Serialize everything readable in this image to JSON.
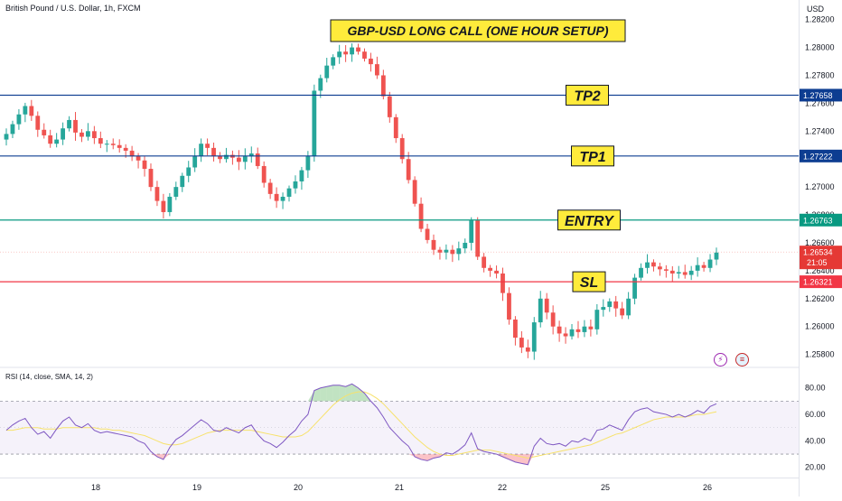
{
  "header": {
    "symbol_title": "British Pound / U.S. Dollar, 1h, FXCM",
    "currency": "USD",
    "setup_title": "GBP-USD LONG CALL (ONE HOUR SETUP)"
  },
  "indicator": {
    "title": "RSI (14, close, SMA, 14, 2)"
  },
  "countdown": "21:05",
  "icons": [
    "flash-icon",
    "us-flag-icon"
  ],
  "colors": {
    "up": "#26a69a",
    "down": "#ef5350",
    "level_blue": "#0d3d91",
    "level_green": "#089981",
    "level_red": "#f23645",
    "label_yellow": "#ffeb3b",
    "rsi_line": "#7e57c2",
    "rsi_sma": "#f7e26b"
  },
  "chart_data": [
    {
      "type": "candlestick",
      "ylim": [
        1.2572,
        1.2834
      ],
      "y_ticks": [
        "1.25800",
        "1.26000",
        "1.26200",
        "1.26400",
        "1.26600",
        "1.26800",
        "1.27000",
        "1.27200",
        "1.27400",
        "1.27600",
        "1.27800",
        "1.28000",
        "1.28200"
      ],
      "x_ticks": [
        "18",
        "19",
        "20",
        "21",
        "22",
        "25",
        "26"
      ],
      "levels": [
        {
          "name": "TP2",
          "value": 1.27658,
          "label": "1.27658",
          "color": "#0d3d91"
        },
        {
          "name": "TP1",
          "value": 1.27222,
          "label": "1.27222",
          "color": "#0d3d91"
        },
        {
          "name": "ENTRY",
          "value": 1.26763,
          "label": "1.26763",
          "color": "#089981"
        },
        {
          "name": "SL",
          "value": 1.26321,
          "label": "1.26321",
          "color": "#f23645"
        }
      ],
      "last_price": {
        "value": 1.26534,
        "label": "1.26534"
      },
      "close_path": [
        1.2738,
        1.2745,
        1.2752,
        1.2758,
        1.2751,
        1.2741,
        1.2737,
        1.2731,
        1.2734,
        1.2742,
        1.2748,
        1.2739,
        1.2736,
        1.274,
        1.2735,
        1.2731,
        1.2731,
        1.273,
        1.2728,
        1.2726,
        1.2722,
        1.2719,
        1.2713,
        1.27,
        1.269,
        1.2682,
        1.2693,
        1.27,
        1.2708,
        1.2714,
        1.2722,
        1.2731,
        1.2728,
        1.2722,
        1.272,
        1.2723,
        1.2721,
        1.2718,
        1.2722,
        1.2724,
        1.2715,
        1.2703,
        1.2695,
        1.269,
        1.2693,
        1.2699,
        1.2704,
        1.2712,
        1.2722,
        1.2769,
        1.2778,
        1.2787,
        1.2793,
        1.2797,
        1.2795,
        1.28,
        1.2797,
        1.2792,
        1.2788,
        1.278,
        1.2765,
        1.275,
        1.2735,
        1.272,
        1.2705,
        1.2688,
        1.267,
        1.2662,
        1.2655,
        1.2653,
        1.2655,
        1.2652,
        1.2656,
        1.266,
        1.2676,
        1.265,
        1.2642,
        1.264,
        1.2638,
        1.2624,
        1.2605,
        1.2592,
        1.2585,
        1.2582,
        1.2603,
        1.262,
        1.261,
        1.26,
        1.2595,
        1.2593,
        1.2598,
        1.2596,
        1.26,
        1.2598,
        1.2612,
        1.2614,
        1.2618,
        1.2613,
        1.2608,
        1.262,
        1.2635,
        1.2642,
        1.2646,
        1.2643,
        1.2641,
        1.264,
        1.2638,
        1.2639,
        1.2637,
        1.264,
        1.2644,
        1.2642,
        1.2648,
        1.2653
      ]
    },
    {
      "type": "line",
      "name": "RSI",
      "ylim": [
        13,
        88
      ],
      "y_ticks": [
        "20.00",
        "40.00",
        "60.00",
        "80.00"
      ],
      "bands": [
        30,
        70
      ],
      "rsi": [
        48,
        52,
        55,
        57,
        50,
        45,
        47,
        42,
        49,
        55,
        58,
        52,
        50,
        53,
        48,
        46,
        47,
        46,
        45,
        44,
        43,
        40,
        38,
        32,
        28,
        26,
        35,
        41,
        44,
        48,
        52,
        56,
        53,
        48,
        47,
        50,
        48,
        46,
        50,
        52,
        45,
        40,
        38,
        35,
        39,
        44,
        48,
        55,
        60,
        78,
        80,
        81,
        82,
        82,
        81,
        83,
        80,
        76,
        70,
        65,
        58,
        50,
        45,
        40,
        36,
        28,
        26,
        25,
        27,
        28,
        31,
        30,
        33,
        37,
        46,
        34,
        32,
        31,
        30,
        28,
        26,
        24,
        23,
        22,
        36,
        42,
        38,
        37,
        38,
        36,
        40,
        39,
        42,
        40,
        48,
        49,
        52,
        50,
        48,
        56,
        62,
        64,
        65,
        62,
        61,
        60,
        58,
        60,
        58,
        60,
        63,
        61,
        66,
        68
      ],
      "rsi_sma": [
        48,
        48,
        49,
        50,
        50,
        50,
        49,
        49,
        49,
        50,
        50,
        50,
        50,
        50,
        50,
        49,
        49,
        48,
        48,
        47,
        46,
        45,
        44,
        42,
        40,
        38,
        37,
        37,
        38,
        40,
        42,
        44,
        46,
        47,
        48,
        48,
        48,
        48,
        48,
        48,
        47,
        46,
        45,
        44,
        43,
        43,
        43,
        44,
        47,
        52,
        57,
        62,
        67,
        71,
        74,
        76,
        77,
        77,
        75,
        72,
        68,
        63,
        58,
        53,
        48,
        43,
        39,
        35,
        32,
        30,
        29,
        29,
        30,
        31,
        32,
        33,
        33,
        33,
        32,
        31,
        30,
        29,
        28,
        27,
        28,
        29,
        30,
        31,
        32,
        33,
        34,
        35,
        36,
        37,
        39,
        41,
        43,
        45,
        46,
        48,
        50,
        52,
        54,
        56,
        57,
        58,
        58,
        58,
        58,
        59,
        60,
        60,
        61,
        62
      ]
    }
  ]
}
